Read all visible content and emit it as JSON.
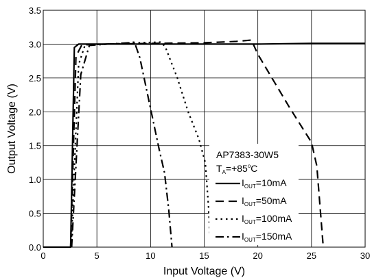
{
  "chart_data": {
    "type": "line",
    "xlabel": "Input Voltage (V)",
    "ylabel": "Output Voltage (V)",
    "xlim": [
      0,
      30
    ],
    "ylim": [
      0,
      3.5
    ],
    "x_ticks": [
      "0",
      "5",
      "10",
      "15",
      "20",
      "25",
      "30"
    ],
    "y_ticks": [
      "0.0",
      "0.5",
      "1.0",
      "1.5",
      "2.0",
      "2.5",
      "3.0",
      "3.5"
    ],
    "grid": true,
    "legend": {
      "placement": "bottom-right",
      "title_line1": "AP7383-30W5",
      "title_line2": "T_A=+85°C",
      "title_line2_parts": {
        "main": "T",
        "sub": "A",
        "rest": "=+85",
        "sup": "o",
        "end": "C"
      }
    },
    "series": [
      {
        "name": "I_OUT=10mA",
        "label_parts": {
          "main": "I",
          "sub": "OUT",
          "rest": "=10mA"
        },
        "style": "solid",
        "points": [
          [
            0,
            0
          ],
          [
            2.4,
            0
          ],
          [
            2.55,
            0
          ],
          [
            2.9,
            2.95
          ],
          [
            3.3,
            3.0
          ],
          [
            5,
            3.0
          ],
          [
            10,
            3.0
          ],
          [
            15,
            3.0
          ],
          [
            20,
            3.0
          ],
          [
            25,
            3.01
          ],
          [
            30,
            3.01
          ]
        ]
      },
      {
        "name": "I_OUT=50mA",
        "label_parts": {
          "main": "I",
          "sub": "OUT",
          "rest": "=50mA"
        },
        "style": "dash",
        "points": [
          [
            2.55,
            0
          ],
          [
            3.05,
            2.82
          ],
          [
            3.6,
            2.99
          ],
          [
            6,
            3.0
          ],
          [
            10,
            3.01
          ],
          [
            15,
            3.02
          ],
          [
            18,
            3.04
          ],
          [
            19.4,
            3.06
          ],
          [
            20.0,
            2.85
          ],
          [
            21.5,
            2.45
          ],
          [
            23.0,
            2.05
          ],
          [
            24.0,
            1.8
          ],
          [
            25.0,
            1.55
          ],
          [
            25.5,
            1.2
          ],
          [
            26.1,
            0.0
          ]
        ]
      },
      {
        "name": "I_OUT=100mA",
        "label_parts": {
          "main": "I",
          "sub": "OUT",
          "rest": "=100mA"
        },
        "style": "dot",
        "points": [
          [
            2.6,
            0
          ],
          [
            3.3,
            2.7
          ],
          [
            3.9,
            2.99
          ],
          [
            6,
            3.0
          ],
          [
            9,
            3.02
          ],
          [
            11.0,
            3.03
          ],
          [
            11.4,
            2.95
          ],
          [
            12.5,
            2.5
          ],
          [
            13.5,
            2.0
          ],
          [
            14.5,
            1.6
          ],
          [
            15.1,
            1.25
          ],
          [
            15.4,
            0.6
          ],
          [
            15.6,
            0.0
          ]
        ]
      },
      {
        "name": "I_OUT=150mA",
        "label_parts": {
          "main": "I",
          "sub": "OUT",
          "rest": "=150mA"
        },
        "style": "dashdot",
        "points": [
          [
            2.65,
            0
          ],
          [
            3.5,
            2.55
          ],
          [
            4.3,
            2.98
          ],
          [
            6,
            3.0
          ],
          [
            8.0,
            3.02
          ],
          [
            8.5,
            3.03
          ],
          [
            9.0,
            2.8
          ],
          [
            10.0,
            2.05
          ],
          [
            10.8,
            1.45
          ],
          [
            11.3,
            1.1
          ],
          [
            11.7,
            0.55
          ],
          [
            12.0,
            0.0
          ]
        ]
      }
    ]
  }
}
